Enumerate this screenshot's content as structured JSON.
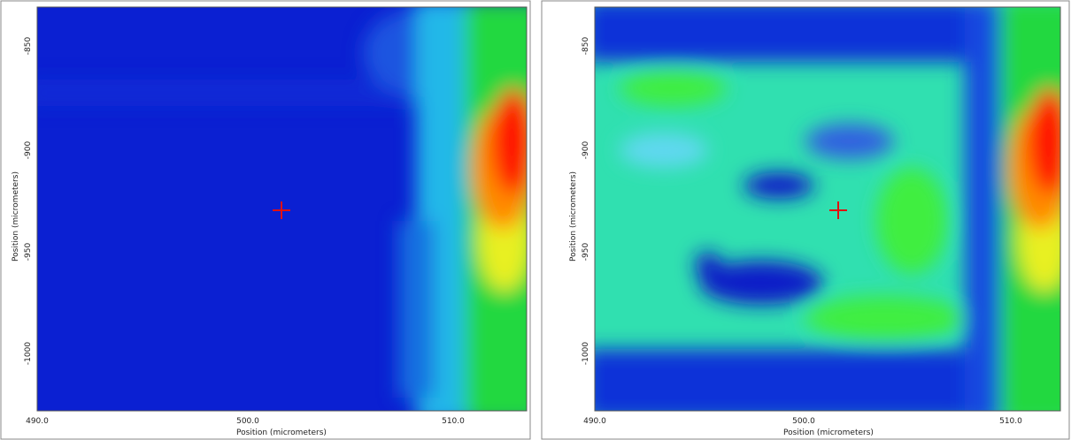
{
  "panels": [
    {
      "x_ticks": [
        "490.0",
        "500.0",
        "510.0"
      ],
      "y_ticks": [
        "-850",
        "-900",
        "-950",
        "-1000"
      ],
      "x_label": "Position (micrometers)",
      "y_label": "Position (micrometers)"
    },
    {
      "x_ticks": [
        "490.0",
        "500.0",
        "510.0"
      ],
      "y_ticks": [
        "-850",
        "-900",
        "-950",
        "-1000"
      ],
      "x_label": "Position (micrometers)",
      "y_label": "Position (micrometers)"
    }
  ]
}
